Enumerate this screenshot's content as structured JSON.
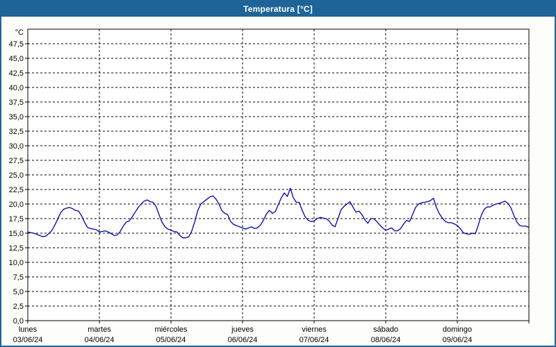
{
  "window": {
    "title": "Temperatura [°C]"
  },
  "chart_data": {
    "type": "line",
    "title": "Temperatura [°C]",
    "grid": "dashed",
    "legend": "none",
    "line_color": "#0000a8",
    "frame_color": "#000000",
    "titlebar_color": "#1e6498",
    "background_color": "#fdfefa",
    "plot_background": "#ffffff",
    "ylabel": "°C",
    "ylim": [
      0,
      50
    ],
    "y_tick_step": 2.5,
    "y_tick_labels": [
      "0,0",
      "2,5",
      "5,0",
      "7,5",
      "10,0",
      "12,5",
      "15,0",
      "17,5",
      "20,0",
      "22,5",
      "25,0",
      "27,5",
      "30,0",
      "32,5",
      "35,0",
      "37,5",
      "40,0",
      "42,5",
      "45,0",
      "47,5"
    ],
    "y_tick_values": [
      0,
      2.5,
      5,
      7.5,
      10,
      12.5,
      15,
      17.5,
      20,
      22.5,
      25,
      27.5,
      30,
      32.5,
      35,
      37.5,
      40,
      42.5,
      45,
      47.5
    ],
    "x_axis_days": [
      {
        "name": "lunes",
        "date": "03/06/24"
      },
      {
        "name": "martes",
        "date": "04/06/24"
      },
      {
        "name": "miércoles",
        "date": "05/06/24"
      },
      {
        "name": "jueves",
        "date": "06/06/24"
      },
      {
        "name": "viernes",
        "date": "07/06/24"
      },
      {
        "name": "sábado",
        "date": "08/06/24"
      },
      {
        "name": "domingo",
        "date": "09/06/24"
      }
    ],
    "x_unit": "hours_from_monday_00",
    "x_range_hours": [
      0,
      168
    ],
    "series": [
      {
        "name": "Temperatura",
        "points": [
          [
            0,
            15.2
          ],
          [
            1,
            15.1
          ],
          [
            2,
            15.0
          ],
          [
            3,
            14.8
          ],
          [
            4,
            14.6
          ],
          [
            5,
            14.4
          ],
          [
            6,
            14.5
          ],
          [
            7,
            14.9
          ],
          [
            8,
            15.4
          ],
          [
            9,
            16.3
          ],
          [
            10,
            17.4
          ],
          [
            11,
            18.5
          ],
          [
            12,
            19.1
          ],
          [
            13,
            19.3
          ],
          [
            14,
            19.4
          ],
          [
            15,
            19.2
          ],
          [
            16,
            18.9
          ],
          [
            17,
            18.8
          ],
          [
            18,
            18.0
          ],
          [
            19,
            16.9
          ],
          [
            20,
            16.0
          ],
          [
            21,
            15.8
          ],
          [
            22,
            15.7
          ],
          [
            23,
            15.6
          ],
          [
            24,
            15.2
          ],
          [
            25,
            15.3
          ],
          [
            26,
            15.4
          ],
          [
            27,
            15.2
          ],
          [
            28,
            14.9
          ],
          [
            29,
            14.6
          ],
          [
            30,
            14.7
          ],
          [
            31,
            15.3
          ],
          [
            32,
            16.2
          ],
          [
            33,
            16.9
          ],
          [
            34,
            17.1
          ],
          [
            35,
            17.8
          ],
          [
            36,
            18.6
          ],
          [
            37,
            19.4
          ],
          [
            38,
            20.0
          ],
          [
            39,
            20.5
          ],
          [
            40,
            20.7
          ],
          [
            41,
            20.4
          ],
          [
            42,
            20.3
          ],
          [
            43,
            19.6
          ],
          [
            44,
            18.2
          ],
          [
            45,
            16.9
          ],
          [
            46,
            16.1
          ],
          [
            47,
            15.7
          ],
          [
            48,
            15.5
          ],
          [
            49,
            15.3
          ],
          [
            50,
            15.2
          ],
          [
            51,
            14.6
          ],
          [
            52,
            14.2
          ],
          [
            53,
            14.2
          ],
          [
            54,
            14.4
          ],
          [
            55,
            15.4
          ],
          [
            56,
            17.0
          ],
          [
            57,
            18.9
          ],
          [
            58,
            20.0
          ],
          [
            59,
            20.4
          ],
          [
            60,
            20.8
          ],
          [
            61,
            21.2
          ],
          [
            62,
            21.4
          ],
          [
            63,
            20.9
          ],
          [
            64,
            20.1
          ],
          [
            65,
            18.9
          ],
          [
            66,
            18.4
          ],
          [
            67,
            18.2
          ],
          [
            68,
            17.0
          ],
          [
            69,
            16.5
          ],
          [
            70,
            16.3
          ],
          [
            71,
            16.1
          ],
          [
            72,
            15.9
          ],
          [
            73,
            15.7
          ],
          [
            74,
            15.9
          ],
          [
            75,
            16.1
          ],
          [
            76,
            15.8
          ],
          [
            77,
            15.9
          ],
          [
            78,
            16.4
          ],
          [
            79,
            17.2
          ],
          [
            80,
            18.3
          ],
          [
            81,
            18.9
          ],
          [
            82,
            18.4
          ],
          [
            83,
            18.7
          ],
          [
            84,
            19.9
          ],
          [
            85,
            21.1
          ],
          [
            86,
            21.9
          ],
          [
            87,
            21.3
          ],
          [
            88,
            22.7
          ],
          [
            89,
            21.1
          ],
          [
            90,
            20.3
          ],
          [
            91,
            20.3
          ],
          [
            92,
            18.9
          ],
          [
            93,
            17.8
          ],
          [
            94,
            17.2
          ],
          [
            95,
            17.0
          ],
          [
            96,
            17.1
          ],
          [
            97,
            17.5
          ],
          [
            98,
            17.7
          ],
          [
            99,
            17.6
          ],
          [
            100,
            17.5
          ],
          [
            101,
            17.1
          ],
          [
            102,
            16.4
          ],
          [
            103,
            16.1
          ],
          [
            104,
            17.5
          ],
          [
            105,
            19.0
          ],
          [
            106,
            19.6
          ],
          [
            107,
            20.0
          ],
          [
            108,
            20.4
          ],
          [
            109,
            19.5
          ],
          [
            110,
            18.6
          ],
          [
            111,
            18.8
          ],
          [
            112,
            18.2
          ],
          [
            113,
            17.3
          ],
          [
            114,
            16.7
          ],
          [
            115,
            17.5
          ],
          [
            116,
            17.5
          ],
          [
            117,
            17.0
          ],
          [
            118,
            16.4
          ],
          [
            119,
            15.9
          ],
          [
            120,
            15.5
          ],
          [
            121,
            15.7
          ],
          [
            122,
            15.9
          ],
          [
            123,
            15.4
          ],
          [
            124,
            15.4
          ],
          [
            125,
            15.8
          ],
          [
            126,
            16.6
          ],
          [
            127,
            17.2
          ],
          [
            128,
            17.0
          ],
          [
            129,
            18.2
          ],
          [
            130,
            19.4
          ],
          [
            131,
            20.0
          ],
          [
            132,
            20.2
          ],
          [
            133,
            20.3
          ],
          [
            134,
            20.4
          ],
          [
            135,
            20.6
          ],
          [
            136,
            21.0
          ],
          [
            137,
            19.4
          ],
          [
            138,
            18.3
          ],
          [
            139,
            17.6
          ],
          [
            140,
            17.0
          ],
          [
            141,
            16.8
          ],
          [
            142,
            16.8
          ],
          [
            143,
            16.6
          ],
          [
            144,
            16.3
          ],
          [
            145,
            15.8
          ],
          [
            146,
            15.1
          ],
          [
            147,
            14.9
          ],
          [
            148,
            14.8
          ],
          [
            149,
            15.0
          ],
          [
            150,
            14.9
          ],
          [
            151,
            16.3
          ],
          [
            152,
            18.0
          ],
          [
            153,
            19.1
          ],
          [
            154,
            19.5
          ],
          [
            155,
            19.5
          ],
          [
            156,
            19.8
          ],
          [
            157,
            20.0
          ],
          [
            158,
            20.1
          ],
          [
            159,
            20.3
          ],
          [
            160,
            20.5
          ],
          [
            161,
            20.1
          ],
          [
            162,
            19.3
          ],
          [
            163,
            18.0
          ],
          [
            164,
            16.9
          ],
          [
            165,
            16.3
          ],
          [
            166,
            16.2
          ],
          [
            167,
            16.2
          ],
          [
            168,
            16.0
          ]
        ]
      }
    ]
  }
}
